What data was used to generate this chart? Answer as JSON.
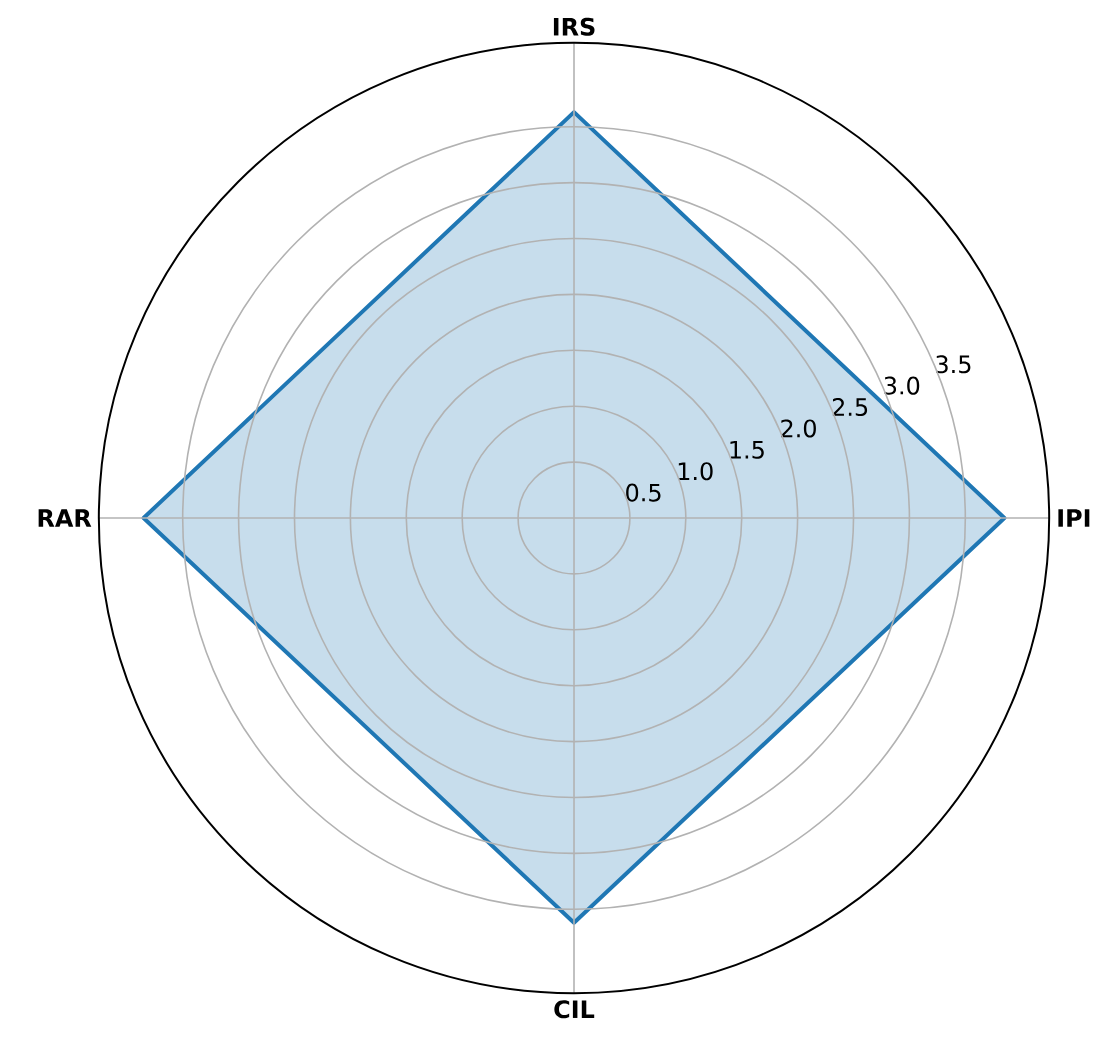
{
  "chart_data": {
    "type": "radar",
    "categories": [
      "IRS",
      "IPI",
      "CIL",
      "RAR"
    ],
    "series": [
      {
        "color": "#1f77b4",
        "values": [
          3.63,
          3.85,
          3.62,
          3.85
        ]
      }
    ],
    "ylim": [
      0,
      4.25
    ],
    "yticks": [
      0.5,
      {
        "value": 1,
        "label": "1.0"
      },
      1.5,
      {
        "value": 2,
        "label": "2.0"
      },
      2.5,
      {
        "value": 3,
        "label": "3.0"
      },
      3.5
    ],
    "grid": true
  }
}
